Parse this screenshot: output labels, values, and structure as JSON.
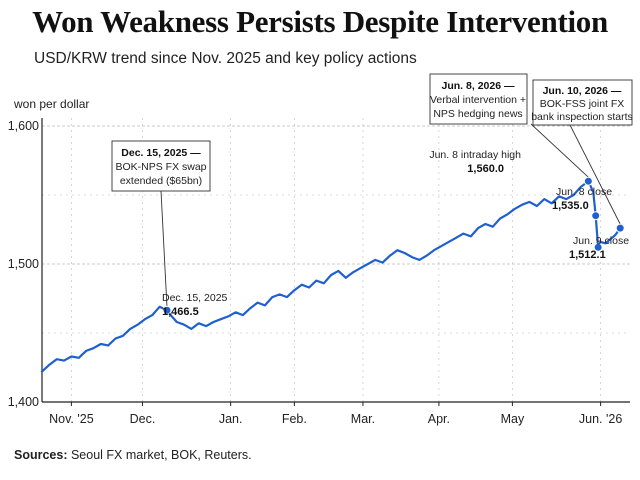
{
  "header": {
    "title": "Won Weakness Persists Despite Intervention",
    "subtitle": "USD/KRW trend since Nov. 2025 and key policy actions"
  },
  "footer": {
    "sources_label": "Sources:",
    "sources_text": " Seoul FX market, BOK, Reuters."
  },
  "colors": {
    "line": "#1f5fd0",
    "marker": "#1f5fd0",
    "grid": "#bbbbbb"
  },
  "chart_data": {
    "type": "line",
    "title": "Won Weakness Persists Despite Intervention",
    "subtitle": "USD/KRW trend since Nov. 2025 and key policy actions",
    "ylabel": "won per dollar",
    "ylim": [
      1400,
      1600
    ],
    "xlim": [
      "2025-10-25",
      "2026-06-22"
    ],
    "yticks": [
      1400,
      1500,
      1600
    ],
    "ytick_labels": [
      "1,400",
      "1,500",
      "1,600"
    ],
    "grid": true,
    "x_ticks": [
      {
        "date": "2025-11-06",
        "label": "Nov. '25"
      },
      {
        "date": "2025-12-05",
        "label": "Dec."
      },
      {
        "date": "2026-01-10",
        "label": "Jan."
      },
      {
        "date": "2026-02-05",
        "label": "Feb."
      },
      {
        "date": "2026-03-05",
        "label": "Mar."
      },
      {
        "date": "2026-04-05",
        "label": "Apr."
      },
      {
        "date": "2026-05-05",
        "label": "May"
      },
      {
        "date": "2026-06-10",
        "label": "Jun. '26"
      }
    ],
    "series": [
      {
        "name": "USD/KRW",
        "points": [
          [
            "2025-10-25",
            1422
          ],
          [
            "2025-10-28",
            1427
          ],
          [
            "2025-10-31",
            1431
          ],
          [
            "2025-11-03",
            1430
          ],
          [
            "2025-11-06",
            1433
          ],
          [
            "2025-11-09",
            1432
          ],
          [
            "2025-11-12",
            1437
          ],
          [
            "2025-11-15",
            1439
          ],
          [
            "2025-11-18",
            1442
          ],
          [
            "2025-11-21",
            1441
          ],
          [
            "2025-11-24",
            1446
          ],
          [
            "2025-11-27",
            1448
          ],
          [
            "2025-11-30",
            1453
          ],
          [
            "2025-12-03",
            1456
          ],
          [
            "2025-12-06",
            1460
          ],
          [
            "2025-12-09",
            1463
          ],
          [
            "2025-12-12",
            1469
          ],
          [
            "2025-12-15",
            1466.5
          ],
          [
            "2025-12-17",
            1462
          ],
          [
            "2025-12-19",
            1458
          ],
          [
            "2025-12-22",
            1456
          ],
          [
            "2025-12-25",
            1453
          ],
          [
            "2025-12-28",
            1457
          ],
          [
            "2025-12-31",
            1455
          ],
          [
            "2026-01-03",
            1458
          ],
          [
            "2026-01-06",
            1460
          ],
          [
            "2026-01-09",
            1462
          ],
          [
            "2026-01-12",
            1465
          ],
          [
            "2026-01-15",
            1463
          ],
          [
            "2026-01-18",
            1468
          ],
          [
            "2026-01-21",
            1472
          ],
          [
            "2026-01-24",
            1470
          ],
          [
            "2026-01-27",
            1476
          ],
          [
            "2026-01-30",
            1478
          ],
          [
            "2026-02-02",
            1476
          ],
          [
            "2026-02-05",
            1481
          ],
          [
            "2026-02-08",
            1485
          ],
          [
            "2026-02-11",
            1483
          ],
          [
            "2026-02-14",
            1488
          ],
          [
            "2026-02-17",
            1486
          ],
          [
            "2026-02-20",
            1492
          ],
          [
            "2026-02-23",
            1495
          ],
          [
            "2026-02-26",
            1490
          ],
          [
            "2026-03-01",
            1494
          ],
          [
            "2026-03-04",
            1497
          ],
          [
            "2026-03-07",
            1500
          ],
          [
            "2026-03-10",
            1503
          ],
          [
            "2026-03-13",
            1501
          ],
          [
            "2026-03-16",
            1506
          ],
          [
            "2026-03-19",
            1510
          ],
          [
            "2026-03-22",
            1508
          ],
          [
            "2026-03-25",
            1505
          ],
          [
            "2026-03-28",
            1503
          ],
          [
            "2026-03-31",
            1506
          ],
          [
            "2026-04-03",
            1510
          ],
          [
            "2026-04-06",
            1513
          ],
          [
            "2026-04-09",
            1516
          ],
          [
            "2026-04-12",
            1519
          ],
          [
            "2026-04-15",
            1522
          ],
          [
            "2026-04-18",
            1520
          ],
          [
            "2026-04-21",
            1526
          ],
          [
            "2026-04-24",
            1529
          ],
          [
            "2026-04-27",
            1527
          ],
          [
            "2026-04-30",
            1533
          ],
          [
            "2026-05-03",
            1536
          ],
          [
            "2026-05-06",
            1540
          ],
          [
            "2026-05-09",
            1543
          ],
          [
            "2026-05-12",
            1545
          ],
          [
            "2026-05-15",
            1542
          ],
          [
            "2026-05-18",
            1547
          ],
          [
            "2026-05-21",
            1544
          ],
          [
            "2026-05-24",
            1549
          ],
          [
            "2026-05-27",
            1547
          ],
          [
            "2026-05-30",
            1550
          ],
          [
            "2026-06-02",
            1556
          ],
          [
            "2026-06-05",
            1560
          ],
          [
            "2026-06-07",
            1552
          ],
          [
            "2026-06-08",
            1535
          ],
          [
            "2026-06-09",
            1512.1
          ],
          [
            "2026-06-10",
            1516
          ],
          [
            "2026-06-12",
            1515
          ],
          [
            "2026-06-14",
            1518
          ],
          [
            "2026-06-16",
            1521
          ],
          [
            "2026-06-18",
            1526
          ]
        ]
      }
    ],
    "markers": [
      {
        "id": "dec15",
        "date": "2025-12-15",
        "value": 1466.5,
        "label": "Dec. 15, 2025",
        "value_label": "1,466.5"
      },
      {
        "id": "jun8high",
        "date": "2026-06-05",
        "value": 1560.0,
        "label": "Jun. 8 intraday high",
        "value_label": "1,560.0"
      },
      {
        "id": "jun8close",
        "date": "2026-06-08",
        "value": 1535.0,
        "label": "Jun. 8 close",
        "value_label": "1,535.0"
      },
      {
        "id": "jun9close",
        "date": "2026-06-09",
        "value": 1512.1,
        "label": "Jun. 9 close",
        "value_label": "1,512.1"
      },
      {
        "id": "jun10",
        "date": "2026-06-18",
        "value": 1526.0
      }
    ],
    "annotations": [
      {
        "id": "dec15",
        "title": "Dec. 15, 2025 —",
        "lines": [
          "BOK-NPS FX swap",
          "extended ($65bn)"
        ]
      },
      {
        "id": "jun8",
        "title": "Jun. 8, 2026 —",
        "lines": [
          "Verbal intervention +",
          "NPS hedging news"
        ]
      },
      {
        "id": "jun10",
        "title": "Jun. 10, 2026 —",
        "lines": [
          "BOK-FSS joint FX",
          "bank inspection starts"
        ]
      }
    ]
  }
}
